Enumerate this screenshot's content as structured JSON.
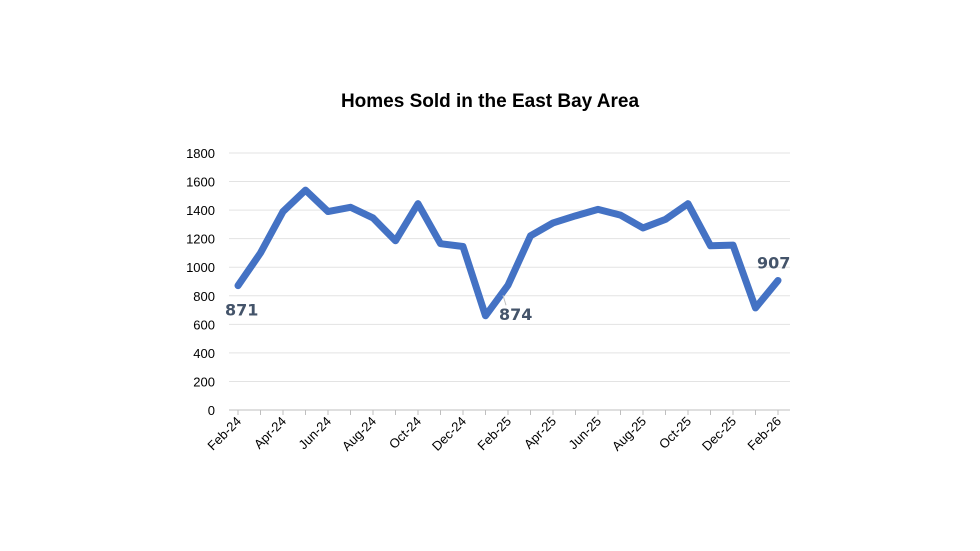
{
  "chart_data": {
    "type": "line",
    "title": "Homes Sold in the East Bay Area",
    "xlabel": "",
    "ylabel": "",
    "ylim": [
      0,
      1800
    ],
    "yticks": [
      0,
      200,
      400,
      600,
      800,
      1000,
      1200,
      1400,
      1600,
      1800
    ],
    "grid": true,
    "legend": "none",
    "x": [
      "Feb-24",
      "Mar-24",
      "Apr-24",
      "May-24",
      "Jun-24",
      "Jul-24",
      "Aug-24",
      "Sep-24",
      "Oct-24",
      "Nov-24",
      "Dec-24",
      "Jan-25",
      "Feb-25",
      "Mar-25",
      "Apr-25",
      "May-25",
      "Jun-25",
      "Jul-25",
      "Aug-25",
      "Sep-25",
      "Oct-25",
      "Nov-25",
      "Dec-25",
      "Jan-26",
      "Feb-26"
    ],
    "xtick_labels": [
      "Feb-24",
      "Apr-24",
      "Jun-24",
      "Aug-24",
      "Oct-24",
      "Dec-24",
      "Feb-25",
      "Apr-25",
      "Jun-25",
      "Aug-25",
      "Oct-25",
      "Dec-25",
      "Feb-26"
    ],
    "values": [
      871,
      1100,
      1390,
      1540,
      1390,
      1420,
      1345,
      1185,
      1445,
      1165,
      1145,
      660,
      874,
      1220,
      1310,
      1360,
      1405,
      1365,
      1275,
      1335,
      1445,
      1150,
      1155,
      715,
      907
    ],
    "data_labels": [
      {
        "index": 0,
        "text": "871"
      },
      {
        "index": 12,
        "text": "874"
      },
      {
        "index": 24,
        "text": "907"
      }
    ],
    "color": "#4472C4",
    "label_color": "#44546A"
  }
}
